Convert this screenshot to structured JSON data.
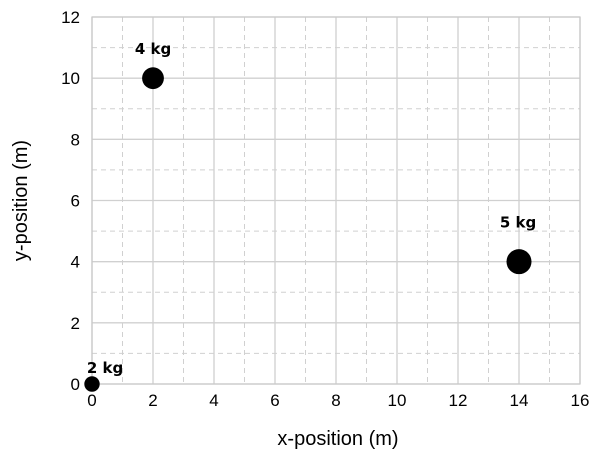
{
  "chart_data": {
    "type": "scatter",
    "title": "",
    "xlabel": "x-position (m)",
    "ylabel": "y-position (m)",
    "xlim": [
      0,
      16
    ],
    "ylim": [
      0,
      12
    ],
    "x_ticks": [
      0,
      2,
      4,
      6,
      8,
      10,
      12,
      14,
      16
    ],
    "y_ticks": [
      0,
      2,
      4,
      6,
      8,
      10,
      12
    ],
    "grid": {
      "major": true,
      "minor": true,
      "minor_style": "dashed"
    },
    "points": [
      {
        "label": "2 kg",
        "x": 0,
        "y": 0,
        "mass": 2
      },
      {
        "label": "4 kg",
        "x": 2,
        "y": 10,
        "mass": 4
      },
      {
        "label": "5 kg",
        "x": 14,
        "y": 4,
        "mass": 5
      }
    ],
    "colors": {
      "point": "#000000",
      "major_grid": "#d0d0d0",
      "minor_grid": "#d0d0d0",
      "frame": "#c8c8c8"
    }
  }
}
